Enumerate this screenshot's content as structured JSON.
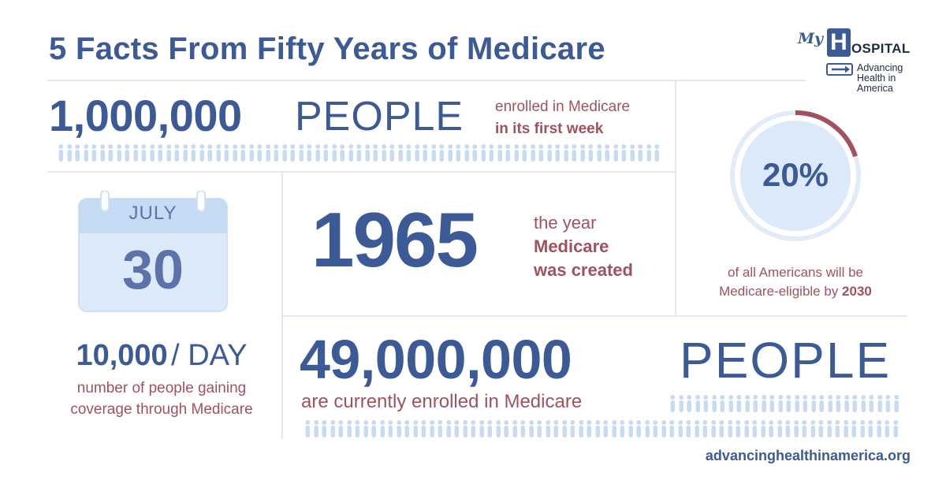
{
  "title": "5 Facts From Fifty Years of Medicare",
  "logo": {
    "my": "My",
    "h": "H",
    "ospital": "OSPITAL",
    "tagline": [
      "Advancing",
      "Health in",
      "America"
    ],
    "icon": "arrow-sign-icon"
  },
  "fact1": {
    "number": "1,000,000",
    "unit": "PEOPLE",
    "desc_line1": "enrolled in Medicare",
    "desc_line2": "in its first week"
  },
  "fact2": {
    "month": "JULY",
    "day": "30",
    "number": "10,000",
    "unit": "/ DAY",
    "desc_line1": "number of people gaining",
    "desc_line2": "coverage through Medicare",
    "icon": "calendar-icon"
  },
  "fact3": {
    "year": "1965",
    "desc_line1": "the year",
    "desc_line2": "Medicare",
    "desc_line3": "was created"
  },
  "fact4": {
    "percent_label": "20%",
    "percent_value": 0.2,
    "desc_line1": "of all Americans will be",
    "desc_line2_prefix": "Medicare-eligible by ",
    "desc_line2_bold": "2030"
  },
  "fact5": {
    "number": "49,000,000",
    "unit": "PEOPLE",
    "desc": "are currently enrolled in Medicare"
  },
  "footer": {
    "url": "advancinghealthinamerica.org"
  },
  "colors": {
    "blue": "#3b5a96",
    "red": "#a0525e",
    "light_blue": "#dce9f8",
    "divider": "#dfe8f3",
    "person": "#c9dcef"
  }
}
